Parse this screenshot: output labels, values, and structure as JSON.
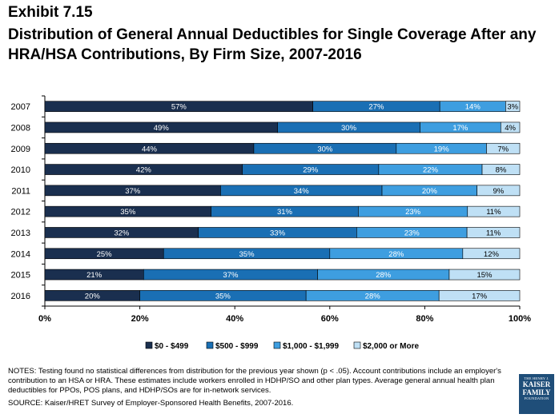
{
  "header": {
    "exhibit": "Exhibit 7.15",
    "title": "Distribution of General Annual Deductibles for Single Coverage After any HRA/HSA Contributions, By Firm Size, 2007-2016"
  },
  "chart_data": {
    "type": "bar",
    "orientation": "horizontal",
    "stacked": true,
    "categories": [
      "2007",
      "2008",
      "2009",
      "2010",
      "2011",
      "2012",
      "2013",
      "2014",
      "2015",
      "2016"
    ],
    "series": [
      {
        "name": "$0 - $499",
        "color": "#1a2f4f",
        "values": [
          57,
          49,
          44,
          42,
          37,
          35,
          32,
          25,
          21,
          20
        ]
      },
      {
        "name": "$500 - $999",
        "color": "#1a6fb4",
        "values": [
          27,
          30,
          30,
          29,
          34,
          31,
          33,
          35,
          37,
          35
        ]
      },
      {
        "name": "$1,000 - $1,999",
        "color": "#3e9ee0",
        "values": [
          14,
          17,
          19,
          22,
          20,
          23,
          23,
          28,
          28,
          28
        ]
      },
      {
        "name": "$2,000 or More",
        "color": "#bfe0f5",
        "values": [
          3,
          4,
          7,
          8,
          9,
          11,
          11,
          12,
          15,
          17
        ]
      }
    ],
    "xlim": [
      0,
      100
    ],
    "xticks": [
      "0%",
      "20%",
      "40%",
      "60%",
      "80%",
      "100%"
    ],
    "legend_position": "bottom",
    "grid": false
  },
  "notes": "NOTES:  Testing found no statistical differences from distribution for the previous year shown (p < .05). Account contributions include an employer's contribution to an HSA or HRA. These estimates include workers enrolled in HDHP/SO and other plan types. Average general annual health plan deductibles for PPOs, POS plans, and HDHP/SOs are for in-network services.",
  "source": "SOURCE:  Kaiser/HRET Survey of Employer-Sponsored Health Benefits, 2007-2016.",
  "logo": {
    "line1": "THE HENRY J.",
    "line2": "KAISER",
    "line3": "FAMILY",
    "line4": "FOUNDATION"
  }
}
